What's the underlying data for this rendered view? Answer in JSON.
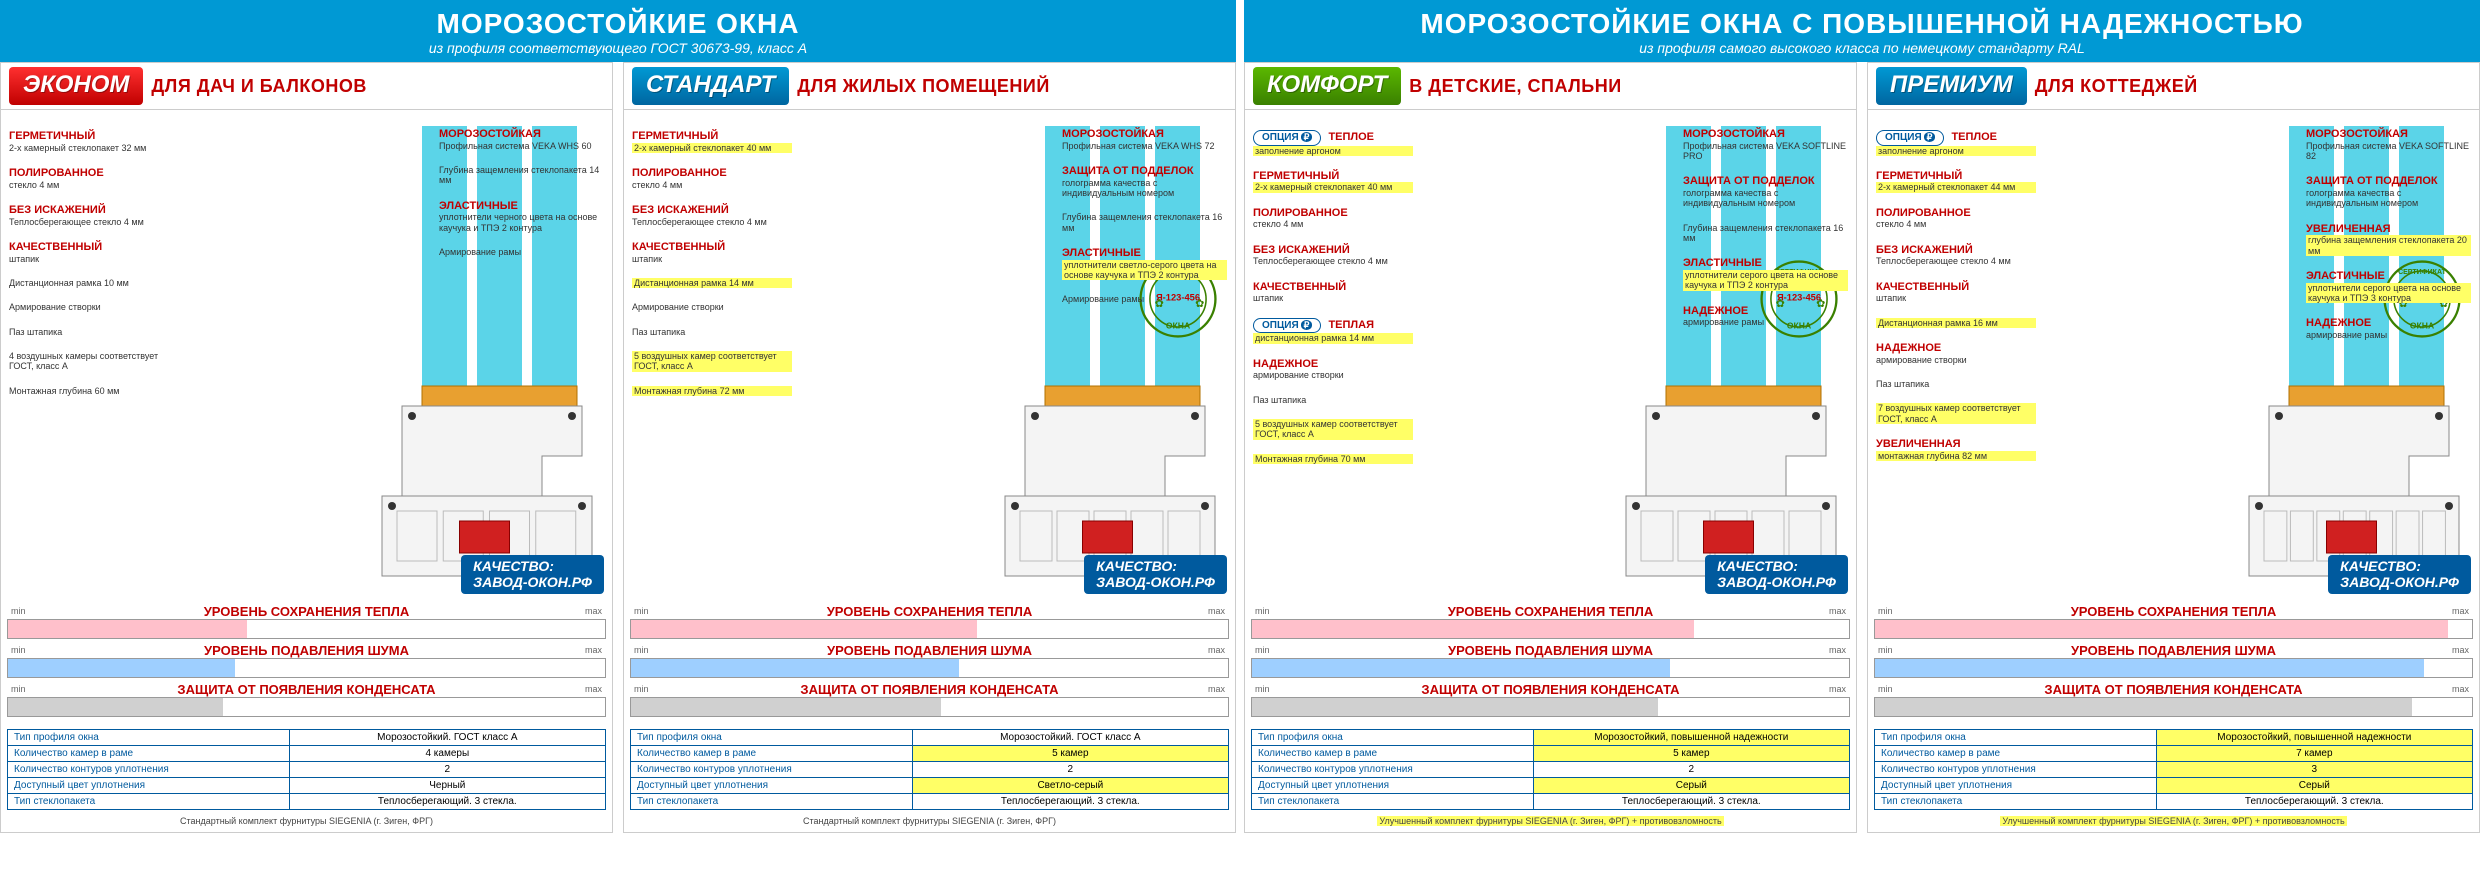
{
  "colors": {
    "banner": "#0099d4",
    "red": "#c00000",
    "blue": "#005a9e",
    "hl": "#ffff66",
    "pink": "#ffc0cb",
    "bblue": "#9ecfff",
    "grey": "#d0d0d0",
    "green": "#3a8000"
  },
  "headers": [
    {
      "title": "МОРОЗОСТОЙКИЕ ОКНА",
      "sub": "из профиля соответствующего ГОСТ 30673-99, класс А"
    },
    {
      "title": "МОРОЗОСТОЙКИЕ ОКНА С ПОВЫШЕННОЙ НАДЕЖНОСТЬЮ",
      "sub": "из профиля самого высокого класса по немецкому стандарту RAL"
    }
  ],
  "products": [
    {
      "name": "ЭКОНОМ",
      "badge": "red",
      "subtitle": "ДЛЯ ДАЧ И БАЛКОНОВ",
      "seal": false,
      "option": false,
      "left": [
        {
          "t": "ГЕРМЕТИЧНЫЙ",
          "d": "2-х камерный стеклопакет 32 мм",
          "hl": false
        },
        {
          "t": "ПОЛИРОВАННОЕ",
          "d": "стекло 4 мм",
          "hl": false
        },
        {
          "t": "БЕЗ ИСКАЖЕНИЙ",
          "d": "Теплосберегающее стекло 4 мм",
          "hl": false
        },
        {
          "t": "КАЧЕСТВЕННЫЙ",
          "d": "штапик",
          "hl": false
        },
        {
          "t": "",
          "d": "Дистанционная рамка 10 мм",
          "hl": false
        },
        {
          "t": "",
          "d": "Армирование створки",
          "hl": false
        },
        {
          "t": "",
          "d": "Паз штапика",
          "hl": false
        },
        {
          "t": "",
          "d": "4 воздушных камеры соответствует ГОСТ, класс А",
          "hl": false
        },
        {
          "t": "",
          "d": "Монтажная глубина 60 мм",
          "hl": false
        }
      ],
      "right": [
        {
          "t": "МОРОЗОСТОЙКАЯ",
          "d": "Профильная система VEKA WHS 60",
          "hl": false
        },
        {
          "t": "",
          "d": "Глубина защемления стеклопакета 14 мм",
          "hl": false
        },
        {
          "t": "ЭЛАСТИЧНЫЕ",
          "d": "уплотнители черного цвета на основе каучука и ТПЭ 2 контура",
          "hl": false
        },
        {
          "t": "",
          "d": "Армирование рамы",
          "hl": false
        }
      ],
      "bars": {
        "heat": 40,
        "noise": 38,
        "cond": 36
      },
      "specs": [
        {
          "k": "Тип профиля окна",
          "v": "Морозостойкий. ГОСТ класс А",
          "hl": false
        },
        {
          "k": "Количество камер в раме",
          "v": "4 камеры",
          "hl": false
        },
        {
          "k": "Количество контуров уплотнения",
          "v": "2",
          "hl": false
        },
        {
          "k": "Доступный цвет уплотнения",
          "v": "Черный",
          "hl": false
        },
        {
          "k": "Тип стеклопакета",
          "v": "Теплосберегающий. 3 стекла.",
          "hl": false
        }
      ],
      "foot": "Стандартный комплект фурнитуры SIEGENIA (г. Зиген, ФРГ)"
    },
    {
      "name": "СТАНДАРТ",
      "badge": "blue",
      "subtitle": "ДЛЯ ЖИЛЫХ ПОМЕЩЕНИЙ",
      "seal": true,
      "option": false,
      "left": [
        {
          "t": "ГЕРМЕТИЧНЫЙ",
          "d": "2-х камерный стеклопакет 40 мм",
          "hl": true
        },
        {
          "t": "ПОЛИРОВАННОЕ",
          "d": "стекло 4 мм",
          "hl": false
        },
        {
          "t": "БЕЗ ИСКАЖЕНИЙ",
          "d": "Теплосберегающее стекло 4 мм",
          "hl": false
        },
        {
          "t": "КАЧЕСТВЕННЫЙ",
          "d": "штапик",
          "hl": false
        },
        {
          "t": "",
          "d": "Дистанционная рамка 14 мм",
          "hl": true
        },
        {
          "t": "",
          "d": "Армирование створки",
          "hl": false
        },
        {
          "t": "",
          "d": "Паз штапика",
          "hl": false
        },
        {
          "t": "",
          "d": "5 воздушных камер соответствует ГОСТ, класс А",
          "hl": true
        },
        {
          "t": "",
          "d": "Монтажная глубина 72 мм",
          "hl": true
        }
      ],
      "right": [
        {
          "t": "МОРОЗОСТОЙКАЯ",
          "d": "Профильная система VEKA WHS 72",
          "hl": false
        },
        {
          "t": "ЗАЩИТА ОТ ПОДДЕЛОК",
          "d": "голограмма качества с индивидуальным номером",
          "hl": false
        },
        {
          "t": "",
          "d": "Глубина защемления стеклопакета 16 мм",
          "hl": false
        },
        {
          "t": "ЭЛАСТИЧНЫЕ",
          "d": "уплотнители светло-серого цвета на основе каучука и ТПЭ 2 контура",
          "hl": true
        },
        {
          "t": "",
          "d": "Армирование рамы",
          "hl": false
        }
      ],
      "bars": {
        "heat": 58,
        "noise": 55,
        "cond": 52
      },
      "specs": [
        {
          "k": "Тип профиля окна",
          "v": "Морозостойкий. ГОСТ класс А",
          "hl": false
        },
        {
          "k": "Количество камер в раме",
          "v": "5 камер",
          "hl": true
        },
        {
          "k": "Количество контуров уплотнения",
          "v": "2",
          "hl": false
        },
        {
          "k": "Доступный цвет уплотнения",
          "v": "Светло-серый",
          "hl": true
        },
        {
          "k": "Тип стеклопакета",
          "v": "Теплосберегающий. 3 стекла.",
          "hl": false
        }
      ],
      "foot": "Стандартный комплект фурнитуры SIEGENIA (г. Зиген, ФРГ)"
    },
    {
      "name": "КОМФОРТ",
      "badge": "green",
      "subtitle": "В ДЕТСКИЕ, СПАЛЬНИ",
      "seal": true,
      "option": true,
      "left": [
        {
          "t": "ОПЦИЯ",
          "d": "ТЕПЛОЕ заполнение аргоном",
          "opt": true
        },
        {
          "t": "ГЕРМЕТИЧНЫЙ",
          "d": "2-х камерный стеклопакет 40 мм",
          "hl": true
        },
        {
          "t": "ПОЛИРОВАННОЕ",
          "d": "стекло 4 мм",
          "hl": false
        },
        {
          "t": "БЕЗ ИСКАЖЕНИЙ",
          "d": "Теплосберегающее стекло 4 мм",
          "hl": false
        },
        {
          "t": "КАЧЕСТВЕННЫЙ",
          "d": "штапик",
          "hl": false
        },
        {
          "t": "ОПЦИЯ",
          "d": "ТЕПЛАЯ дистанционная рамка 14 мм",
          "opt": true
        },
        {
          "t": "НАДЕЖНОЕ",
          "d": "армирование створки",
          "hl": false
        },
        {
          "t": "",
          "d": "Паз штапика",
          "hl": false
        },
        {
          "t": "",
          "d": "5 воздушных камер соответствует ГОСТ, класс А",
          "hl": true
        },
        {
          "t": "",
          "d": "Монтажная глубина 70 мм",
          "hl": true
        }
      ],
      "right": [
        {
          "t": "МОРОЗОСТОЙКАЯ",
          "d": "Профильная система VEKA SOFTLINE PRO",
          "hl": false
        },
        {
          "t": "ЗАЩИТА ОТ ПОДДЕЛОК",
          "d": "голограмма качества с индивидуальным номером",
          "hl": false
        },
        {
          "t": "",
          "d": "Глубина защемления стеклопакета 16 мм",
          "hl": false
        },
        {
          "t": "ЭЛАСТИЧНЫЕ",
          "d": "уплотнители серого цвета на основе каучука и ТПЭ 2 контура",
          "hl": true
        },
        {
          "t": "НАДЕЖНОЕ",
          "d": "армирование рамы",
          "hl": false
        }
      ],
      "bars": {
        "heat": 74,
        "noise": 70,
        "cond": 68
      },
      "specs": [
        {
          "k": "Тип профиля окна",
          "v": "Морозостойкий, повышенной надежности",
          "hl": true
        },
        {
          "k": "Количество камер в раме",
          "v": "5 камер",
          "hl": true
        },
        {
          "k": "Количество контуров уплотнения",
          "v": "2",
          "hl": false
        },
        {
          "k": "Доступный цвет уплотнения",
          "v": "Серый",
          "hl": true
        },
        {
          "k": "Тип стеклопакета",
          "v": "Теплосберегающий. 3 стекла.",
          "hl": false
        }
      ],
      "foot": "Улучшенный комплект фурнитуры SIEGENIA (г. Зиген, ФРГ) + противовзломность"
    },
    {
      "name": "ПРЕМИУМ",
      "badge": "blue",
      "subtitle": "ДЛЯ КОТТЕДЖЕЙ",
      "seal": true,
      "option": true,
      "left": [
        {
          "t": "ОПЦИЯ",
          "d": "ТЕПЛОЕ заполнение аргоном",
          "opt": true
        },
        {
          "t": "ГЕРМЕТИЧНЫЙ",
          "d": "2-х камерный стеклопакет 44 мм",
          "hl": true
        },
        {
          "t": "ПОЛИРОВАННОЕ",
          "d": "стекло 4 мм",
          "hl": false
        },
        {
          "t": "БЕЗ ИСКАЖЕНИЙ",
          "d": "Теплосберегающее стекло 4 мм",
          "hl": false
        },
        {
          "t": "КАЧЕСТВЕННЫЙ",
          "d": "штапик",
          "hl": false
        },
        {
          "t": "",
          "d": "Дистанционная рамка 16 мм",
          "hl": true
        },
        {
          "t": "НАДЕЖНОЕ",
          "d": "армирование створки",
          "hl": false
        },
        {
          "t": "",
          "d": "Паз штапика",
          "hl": false
        },
        {
          "t": "",
          "d": "7 воздушных камер соответствует ГОСТ, класс А",
          "hl": true
        },
        {
          "t": "УВЕЛИЧЕННАЯ",
          "d": "монтажная глубина 82 мм",
          "hl": true
        }
      ],
      "right": [
        {
          "t": "МОРОЗОСТОЙКАЯ",
          "d": "Профильная система VEKA SOFTLINE 82",
          "hl": false
        },
        {
          "t": "ЗАЩИТА ОТ ПОДДЕЛОК",
          "d": "голограмма качества с индивидуальным номером",
          "hl": false
        },
        {
          "t": "УВЕЛИЧЕННАЯ",
          "d": "глубина защемления стеклопакета 20 мм",
          "hl": true
        },
        {
          "t": "ЭЛАСТИЧНЫЕ",
          "d": "уплотнители серого цвета на основе каучука и ТПЭ 3 контура",
          "hl": true
        },
        {
          "t": "НАДЕЖНОЕ",
          "d": "армирование рамы",
          "hl": false
        }
      ],
      "bars": {
        "heat": 96,
        "noise": 92,
        "cond": 90
      },
      "specs": [
        {
          "k": "Тип профиля окна",
          "v": "Морозостойкий, повышенной надежности",
          "hl": true
        },
        {
          "k": "Количество камер в раме",
          "v": "7 камер",
          "hl": true
        },
        {
          "k": "Количество контуров уплотнения",
          "v": "3",
          "hl": true
        },
        {
          "k": "Доступный цвет уплотнения",
          "v": "Серый",
          "hl": true
        },
        {
          "k": "Тип стеклопакета",
          "v": "Теплосберегающий. 3 стекла.",
          "hl": false
        }
      ],
      "foot": "Улучшенный комплект фурнитуры SIEGENIA (г. Зиген, ФРГ) + противовзломность"
    }
  ],
  "bar_labels": {
    "heat": "УРОВЕНЬ СОХРАНЕНИЯ ТЕПЛА",
    "noise": "УРОВЕНЬ ПОДАВЛЕНИЯ ШУМА",
    "cond": "ЗАЩИТА ОТ ПОЯВЛЕНИЯ КОНДЕНСАТА",
    "min": "min",
    "max": "max"
  },
  "quality": {
    "line1": "КАЧЕСТВО:",
    "line2": "ЗАВОД-ОКОН.РФ"
  },
  "seal_text": {
    "top": "СЕРТИФИКАТ",
    "num": "Я-123-456",
    "bot": "ОКНА"
  }
}
